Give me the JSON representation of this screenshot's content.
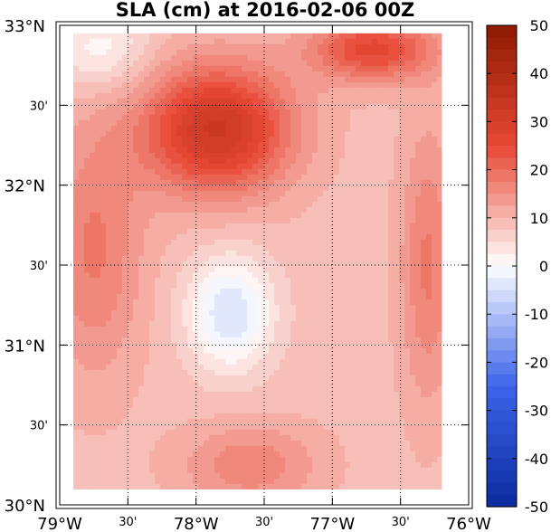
{
  "title": "SLA (cm) at 2016-02-06 00Z",
  "map": {
    "lon_range": [
      -79,
      -76
    ],
    "lat_range": [
      30,
      33
    ],
    "grid": true,
    "x_ticks": [
      {
        "lon": -79.0,
        "label": "79°W",
        "major": true
      },
      {
        "lon": -78.5,
        "label": "30'",
        "major": false
      },
      {
        "lon": -78.0,
        "label": "78°W",
        "major": true
      },
      {
        "lon": -77.5,
        "label": "30'",
        "major": false
      },
      {
        "lon": -77.0,
        "label": "77°W",
        "major": true
      },
      {
        "lon": -76.5,
        "label": "30'",
        "major": false
      },
      {
        "lon": -76.0,
        "label": "76°W",
        "major": true
      }
    ],
    "y_ticks": [
      {
        "lat": 33.0,
        "label": "33°N",
        "major": true
      },
      {
        "lat": 32.5,
        "label": "30'",
        "major": false
      },
      {
        "lat": 32.0,
        "label": "32°N",
        "major": true
      },
      {
        "lat": 31.5,
        "label": "30'",
        "major": false
      },
      {
        "lat": 31.0,
        "label": "31°N",
        "major": true
      },
      {
        "lat": 30.5,
        "label": "30'",
        "major": false
      },
      {
        "lat": 30.0,
        "label": "30°N",
        "major": true
      }
    ],
    "field_extent": {
      "lon": [
        -78.9,
        -76.2
      ],
      "lat": [
        30.1,
        32.95
      ]
    },
    "features": [
      {
        "name": "eddy-high",
        "lon": -77.85,
        "lat": 32.35,
        "amp": 24,
        "sx": 0.38,
        "sy": 0.28
      },
      {
        "name": "ne-high",
        "lon": -76.7,
        "lat": 32.85,
        "amp": 17,
        "sx": 0.32,
        "sy": 0.14
      },
      {
        "name": "west-ridge",
        "lon": -78.75,
        "lat": 31.6,
        "amp": 9,
        "sx": 0.25,
        "sy": 0.55
      },
      {
        "name": "low-center",
        "lon": -77.75,
        "lat": 31.2,
        "amp": -14,
        "sx": 0.22,
        "sy": 0.25
      },
      {
        "name": "east-edge",
        "lon": -76.3,
        "lat": 31.5,
        "amp": 9,
        "sx": 0.14,
        "sy": 0.6
      },
      {
        "name": "south-high",
        "lon": -77.6,
        "lat": 30.25,
        "amp": 8,
        "sx": 0.35,
        "sy": 0.18
      },
      {
        "name": "nw-low",
        "lon": -78.7,
        "lat": 32.85,
        "amp": -8,
        "sx": 0.25,
        "sy": 0.18
      }
    ],
    "base_value": 9
  },
  "colorbar": {
    "min": -50,
    "max": 50,
    "levels": 40,
    "ticks": [
      50,
      40,
      30,
      20,
      10,
      0,
      -10,
      -20,
      -30,
      -40,
      -50
    ],
    "tick_labels": [
      "50",
      "40",
      "30",
      "20",
      "10",
      "0",
      "-10",
      "-20",
      "-30",
      "-40",
      "-50"
    ],
    "colors": {
      "low": "#0a2a9e",
      "mid": "#ffffff",
      "high": "#8c1a00"
    }
  }
}
